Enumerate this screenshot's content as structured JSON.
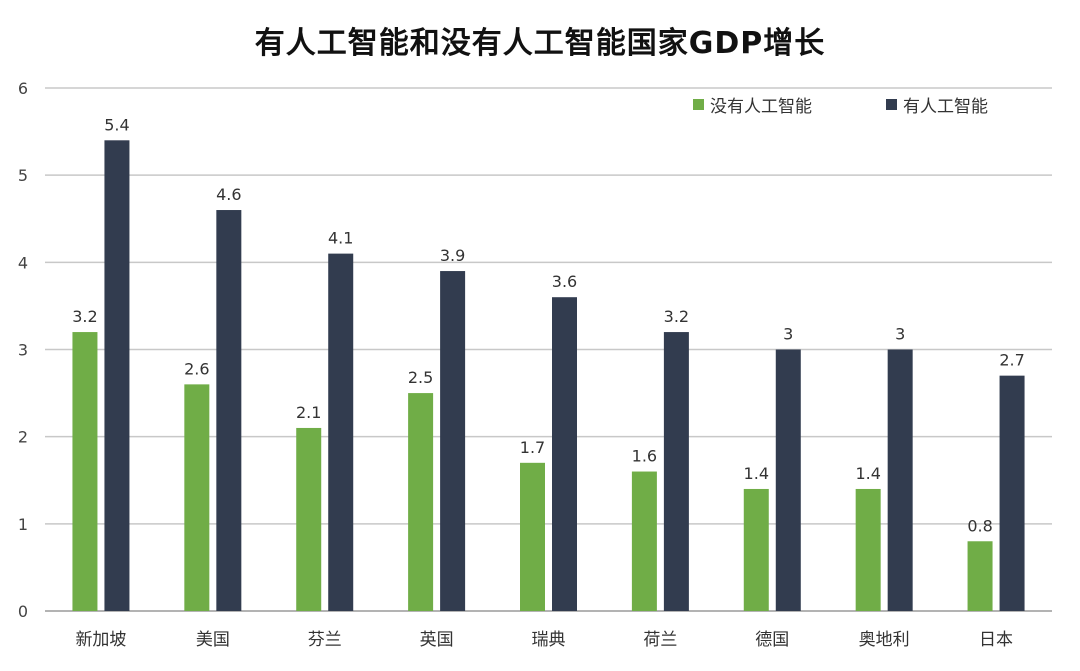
{
  "chart_data": {
    "type": "bar",
    "title": "有人工智能和没有人工智能国家GDP增长",
    "xlabel": "",
    "ylabel": "",
    "ylim": [
      0,
      6
    ],
    "yticks": [
      "0",
      "1",
      "2",
      "3",
      "4",
      "5",
      "6"
    ],
    "grid": true,
    "legend_position": "top-right",
    "categories": [
      "新加坡",
      "美国",
      "芬兰",
      "英国",
      "瑞典",
      "荷兰",
      "德国",
      "奥地利",
      "日本"
    ],
    "series": [
      {
        "name": "没有人工智能",
        "color": "#70ad47",
        "values": [
          3.2,
          2.6,
          2.1,
          2.5,
          1.7,
          1.6,
          1.4,
          1.4,
          0.8
        ],
        "labels": [
          "3.2",
          "2.6",
          "2.1",
          "2.5",
          "1.7",
          "1.6",
          "1.4",
          "1.4",
          "0.8"
        ]
      },
      {
        "name": "有人工智能",
        "color": "#323c4f",
        "values": [
          5.4,
          4.6,
          4.1,
          3.9,
          3.6,
          3.2,
          3,
          3,
          2.7
        ],
        "labels": [
          "5.4",
          "4.6",
          "4.1",
          "3.9",
          "3.6",
          "3.2",
          "3",
          "3",
          "2.7"
        ]
      }
    ]
  }
}
